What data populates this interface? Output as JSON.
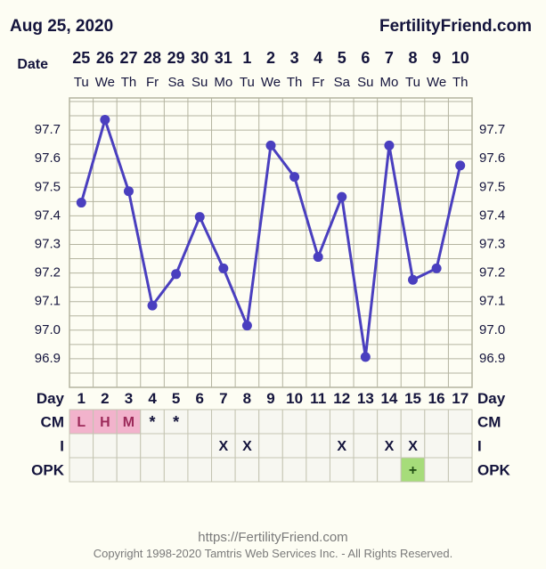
{
  "header": {
    "date": "Aug 25, 2020",
    "site": "FertilityFriend.com"
  },
  "footer": {
    "url": "https://FertilityFriend.com",
    "copyright": "Copyright 1998-2020 Tamtris Web Services Inc. - All Rights Reserved."
  },
  "colors": {
    "background": "#fdfdf3",
    "line": "#4a3fbf",
    "grid": "#b4b4a0",
    "cm_fill": "#f2b3cc",
    "cm_text": "#9c2a5a",
    "opk_fill": "#a6dc7a"
  },
  "chart_data": {
    "type": "line",
    "row_labels": {
      "date": "Date",
      "day": "Day",
      "cm": "CM",
      "i": "I",
      "opk": "OPK"
    },
    "x_dates": [
      "25",
      "26",
      "27",
      "28",
      "29",
      "30",
      "31",
      "1",
      "2",
      "3",
      "4",
      "5",
      "6",
      "7",
      "8",
      "9",
      "10"
    ],
    "x_weekdays": [
      "Tu",
      "We",
      "Th",
      "Fr",
      "Sa",
      "Su",
      "Mo",
      "Tu",
      "We",
      "Th",
      "Fr",
      "Sa",
      "Su",
      "Mo",
      "Tu",
      "We",
      "Th"
    ],
    "cycle_days": [
      "1",
      "2",
      "3",
      "4",
      "5",
      "6",
      "7",
      "8",
      "9",
      "10",
      "11",
      "12",
      "13",
      "14",
      "15",
      "16",
      "17"
    ],
    "y_ticks": [
      "97.7",
      "97.6",
      "97.5",
      "97.4",
      "97.3",
      "97.2",
      "97.1",
      "97.0",
      "96.9"
    ],
    "ylim": [
      96.8,
      97.8
    ],
    "series": [
      {
        "values": [
          97.44,
          97.73,
          97.48,
          97.08,
          97.19,
          97.39,
          97.21,
          97.01,
          97.64,
          97.53,
          97.25,
          97.46,
          96.9,
          97.64,
          97.17,
          97.21,
          97.57
        ]
      }
    ],
    "cm": [
      "L",
      "H",
      "M",
      "*",
      "*",
      "",
      "",
      "",
      "",
      "",
      "",
      "",
      "",
      "",
      "",
      "",
      ""
    ],
    "intercourse": [
      "",
      "",
      "",
      "",
      "",
      "",
      "X",
      "X",
      "",
      "",
      "",
      "X",
      "",
      "X",
      "X",
      "",
      ""
    ],
    "opk": [
      "",
      "",
      "",
      "",
      "",
      "",
      "",
      "",
      "",
      "",
      "",
      "",
      "",
      "",
      "+",
      "",
      ""
    ]
  }
}
